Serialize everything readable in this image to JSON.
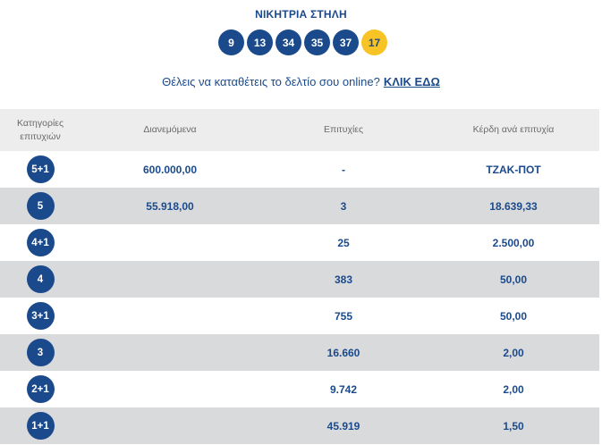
{
  "winning": {
    "title": "ΝΙΚΗΤΡΙΑ ΣΤΗΛΗ",
    "numbers": [
      "9",
      "13",
      "34",
      "35",
      "37"
    ],
    "joker": "17"
  },
  "cta": {
    "text": "Θέλεις να καταθέτεις το δελτίο σου online?",
    "link": "ΚΛΙΚ ΕΔΩ"
  },
  "table": {
    "headers": {
      "category_line1": "Κατηγορίες",
      "category_line2": "επιτυχιών",
      "distributed": "Διανεμόμενα",
      "winners": "Επιτυχίες",
      "prize": "Κέρδη ανά επιτυχία"
    },
    "rows": [
      {
        "category": "5+1",
        "distributed": "600.000,00",
        "winners": "-",
        "prize": "ΤΖΑΚ-ΠΟΤ"
      },
      {
        "category": "5",
        "distributed": "55.918,00",
        "winners": "3",
        "prize": "18.639,33"
      },
      {
        "category": "4+1",
        "distributed": "",
        "winners": "25",
        "prize": "2.500,00"
      },
      {
        "category": "4",
        "distributed": "",
        "winners": "383",
        "prize": "50,00"
      },
      {
        "category": "3+1",
        "distributed": "",
        "winners": "755",
        "prize": "50,00"
      },
      {
        "category": "3",
        "distributed": "",
        "winners": "16.660",
        "prize": "2,00"
      },
      {
        "category": "2+1",
        "distributed": "",
        "winners": "9.742",
        "prize": "2,00"
      },
      {
        "category": "1+1",
        "distributed": "",
        "winners": "45.919",
        "prize": "1,50"
      }
    ]
  },
  "colors": {
    "primary": "#1b4a8c",
    "joker": "#f7c325",
    "header_bg": "#ededed",
    "row_alt_bg": "#d9dadb"
  }
}
